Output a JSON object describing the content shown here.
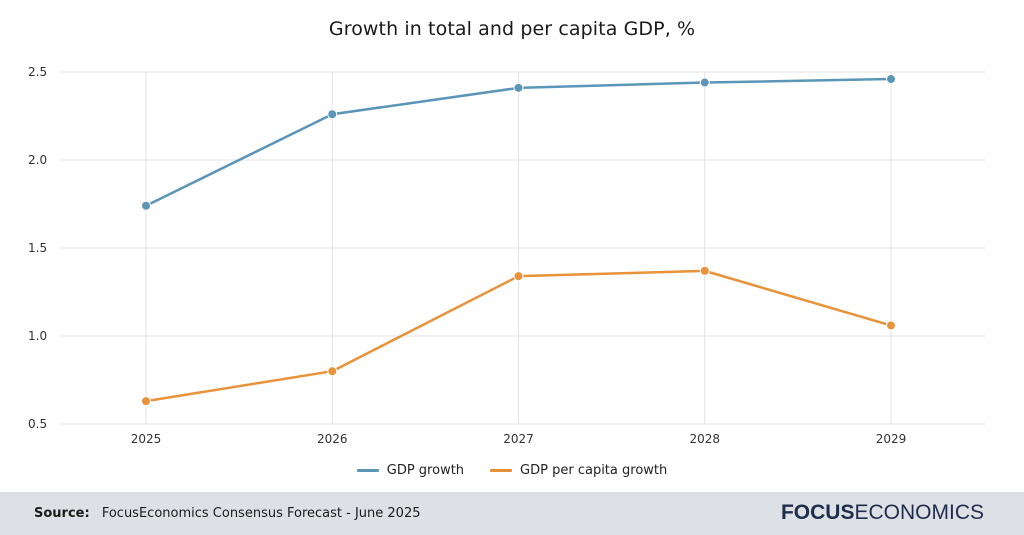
{
  "chart_data": {
    "type": "line",
    "title": "Growth in total and per capita GDP, %",
    "x": [
      "2025",
      "2026",
      "2027",
      "2028",
      "2029"
    ],
    "ylim": [
      0.5,
      2.5
    ],
    "yticks": [
      "0.5",
      "1.0",
      "1.5",
      "2.0",
      "2.5"
    ],
    "grid": true,
    "legend_position": "bottom",
    "series": [
      {
        "name": "GDP growth",
        "color": "#5b96b8",
        "values": [
          1.74,
          2.26,
          2.41,
          2.44,
          2.46
        ]
      },
      {
        "name": "GDP per capita growth",
        "color": "#e8923a",
        "values": [
          0.63,
          0.8,
          1.34,
          1.37,
          1.06
        ]
      }
    ]
  },
  "footer": {
    "source_label": "Source:",
    "source_text": "FocusEconomics Consensus Forecast - June 2025",
    "logo_bold": "FOCUS",
    "logo_light": "ECONOMICS"
  }
}
